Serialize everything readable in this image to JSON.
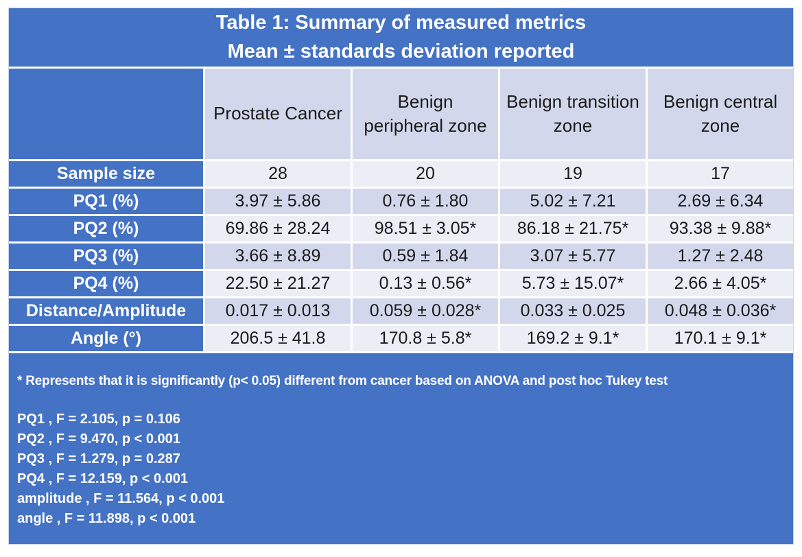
{
  "title": {
    "line1": "Table 1: Summary of measured metrics",
    "line2": "Mean ± standards deviation reported"
  },
  "columns": [
    "Prostate Cancer",
    "Benign peripheral zone",
    "Benign transition zone",
    "Benign central zone"
  ],
  "rows": [
    {
      "label": "Sample size",
      "values": [
        "28",
        "20",
        "19",
        "17"
      ]
    },
    {
      "label": "PQ1 (%)",
      "values": [
        "3.97 ± 5.86",
        "0.76 ± 1.80",
        "5.02 ± 7.21",
        "2.69 ± 6.34"
      ]
    },
    {
      "label": "PQ2 (%)",
      "values": [
        "69.86 ± 28.24",
        "98.51 ± 3.05*",
        "86.18 ± 21.75*",
        "93.38 ± 9.88*"
      ]
    },
    {
      "label": "PQ3 (%)",
      "values": [
        "3.66 ± 8.89",
        "0.59 ± 1.84",
        "3.07 ± 5.77",
        "1.27 ± 2.48"
      ]
    },
    {
      "label": "PQ4 (%)",
      "values": [
        "22.50 ± 21.27",
        "0.13 ± 0.56*",
        "5.73 ± 15.07*",
        "2.66 ± 4.05*"
      ]
    },
    {
      "label": "Distance/Amplitude",
      "values": [
        "0.017 ± 0.013",
        "0.059 ± 0.028*",
        "0.033 ± 0.025",
        "0.048 ± 0.036*"
      ]
    },
    {
      "label": "Angle (°)",
      "values": [
        "206.5 ± 41.8",
        "170.8 ± 5.8*",
        "169.2 ± 9.1*",
        "170.1 ± 9.1*"
      ]
    }
  ],
  "footnote": {
    "significance": "* Represents that it is significantly (p< 0.05)  different from cancer based on ANOVA and post hoc Tukey test",
    "stats": [
      "PQ1 , F = 2.105, p = 0.106",
      "PQ2 , F = 9.470, p < 0.001",
      "PQ3 , F = 1.279, p = 0.287",
      "PQ4 , F = 12.159, p < 0.001",
      "amplitude , F = 11.564, p < 0.001",
      "angle , F = 11.898, p < 0.001"
    ]
  },
  "colors": {
    "blue": "#4472C4",
    "band_dark": "#D2D7EB",
    "band_light": "#ECEEF6",
    "border": "#FFFFFF",
    "text_dark": "#1A1A1A",
    "text_light": "#FFFFFF"
  }
}
